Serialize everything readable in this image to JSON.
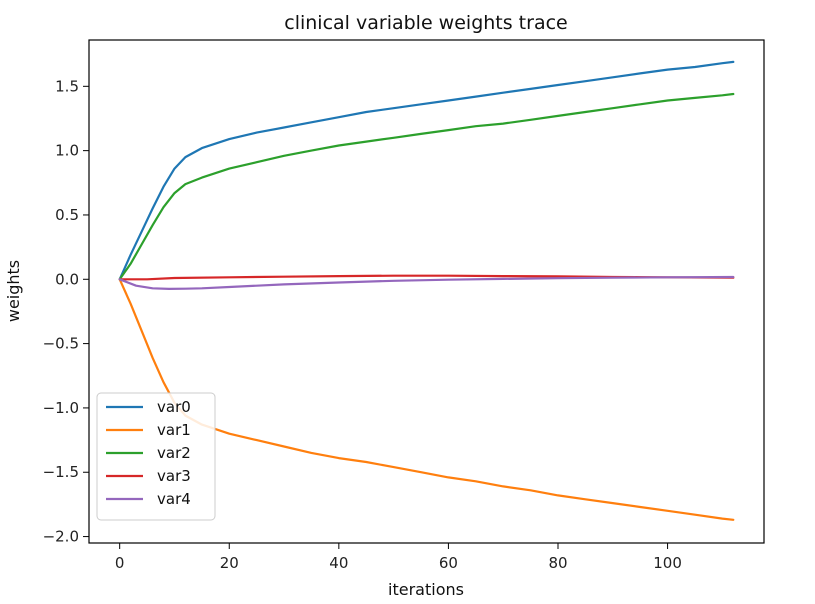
{
  "chart_data": {
    "type": "line",
    "title": "clinical variable weights trace",
    "xlabel": "iterations",
    "ylabel": "weights",
    "xlim": [
      -5.6,
      117.6
    ],
    "ylim": [
      -2.05,
      1.86
    ],
    "xticks": [
      0,
      20,
      40,
      60,
      80,
      100
    ],
    "xtick_labels": [
      "0",
      "20",
      "40",
      "60",
      "80",
      "100"
    ],
    "yticks": [
      -2.0,
      -1.5,
      -1.0,
      -0.5,
      0.0,
      0.5,
      1.0,
      1.5
    ],
    "ytick_labels": [
      "−2.0",
      "−1.5",
      "−1.0",
      "−0.5",
      "0.0",
      "0.5",
      "1.0",
      "1.5"
    ],
    "grid": false,
    "legend_position": "lower-left",
    "series": [
      {
        "name": "var0",
        "color": "#1f77b4",
        "x": [
          0,
          2,
          4,
          6,
          8,
          10,
          12,
          15,
          20,
          25,
          30,
          35,
          40,
          45,
          50,
          55,
          60,
          65,
          70,
          75,
          80,
          85,
          90,
          95,
          100,
          105,
          110,
          112
        ],
        "y": [
          0.0,
          0.19,
          0.37,
          0.55,
          0.72,
          0.86,
          0.95,
          1.02,
          1.09,
          1.14,
          1.18,
          1.22,
          1.26,
          1.3,
          1.33,
          1.36,
          1.39,
          1.42,
          1.45,
          1.48,
          1.51,
          1.54,
          1.57,
          1.6,
          1.63,
          1.65,
          1.68,
          1.69
        ]
      },
      {
        "name": "var1",
        "color": "#ff7f0e",
        "x": [
          0,
          2,
          4,
          6,
          8,
          10,
          12,
          15,
          20,
          25,
          30,
          35,
          40,
          45,
          50,
          55,
          60,
          65,
          70,
          75,
          80,
          85,
          90,
          95,
          100,
          105,
          110,
          112
        ],
        "y": [
          0.0,
          -0.19,
          -0.4,
          -0.61,
          -0.8,
          -0.96,
          -1.06,
          -1.13,
          -1.2,
          -1.25,
          -1.3,
          -1.35,
          -1.39,
          -1.42,
          -1.46,
          -1.5,
          -1.54,
          -1.57,
          -1.61,
          -1.64,
          -1.68,
          -1.71,
          -1.74,
          -1.77,
          -1.8,
          -1.83,
          -1.86,
          -1.87
        ]
      },
      {
        "name": "var2",
        "color": "#2ca02c",
        "x": [
          0,
          2,
          4,
          6,
          8,
          10,
          12,
          15,
          20,
          25,
          30,
          35,
          40,
          45,
          50,
          55,
          60,
          65,
          70,
          75,
          80,
          85,
          90,
          95,
          100,
          105,
          110,
          112
        ],
        "y": [
          0.0,
          0.12,
          0.27,
          0.42,
          0.56,
          0.67,
          0.74,
          0.79,
          0.86,
          0.91,
          0.96,
          1.0,
          1.04,
          1.07,
          1.1,
          1.13,
          1.16,
          1.19,
          1.21,
          1.24,
          1.27,
          1.3,
          1.33,
          1.36,
          1.39,
          1.41,
          1.43,
          1.44
        ]
      },
      {
        "name": "var3",
        "color": "#d62728",
        "x": [
          0,
          5,
          10,
          20,
          30,
          40,
          50,
          60,
          70,
          80,
          90,
          100,
          112
        ],
        "y": [
          0.0,
          0.0,
          0.01,
          0.015,
          0.02,
          0.025,
          0.028,
          0.028,
          0.025,
          0.022,
          0.018,
          0.015,
          0.012
        ]
      },
      {
        "name": "var4",
        "color": "#9467bd",
        "x": [
          0,
          3,
          6,
          9,
          12,
          15,
          20,
          25,
          30,
          40,
          50,
          60,
          70,
          80,
          90,
          100,
          112
        ],
        "y": [
          0.0,
          -0.05,
          -0.07,
          -0.075,
          -0.073,
          -0.07,
          -0.06,
          -0.05,
          -0.04,
          -0.025,
          -0.012,
          -0.003,
          0.003,
          0.008,
          0.012,
          0.015,
          0.018
        ]
      }
    ]
  }
}
